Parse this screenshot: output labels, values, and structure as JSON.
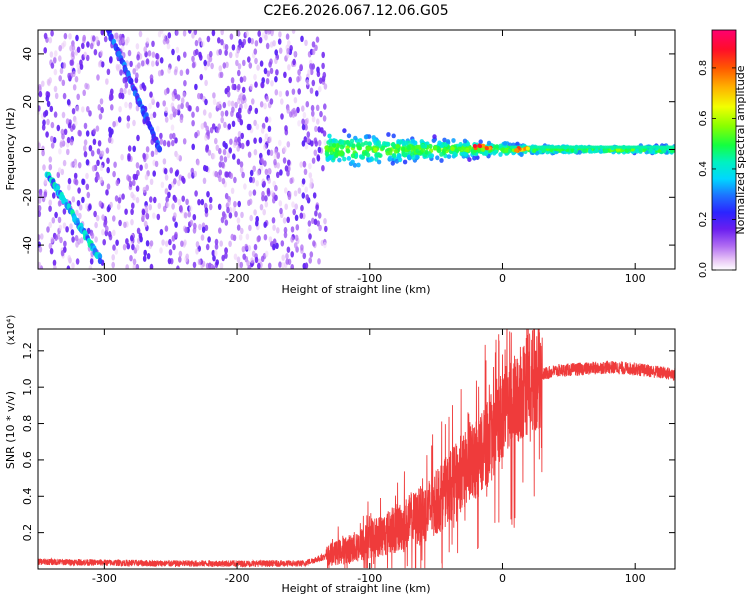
{
  "figure": {
    "title": "C2E6.2026.067.12.06.G05"
  },
  "chart_data": [
    {
      "type": "heatmap",
      "xlabel": "Height of straight line (km)",
      "ylabel": "Frequency (Hz)",
      "xlim": [
        -350,
        130
      ],
      "ylim": [
        -50,
        50
      ],
      "x_ticks": [
        -300,
        -200,
        -100,
        0,
        100
      ],
      "y_ticks": [
        -40,
        -20,
        0,
        20,
        40
      ],
      "colorbar": {
        "label": "Normalized spectral amplitude",
        "range": [
          0.0,
          0.95
        ],
        "ticks": [
          0.0,
          0.2,
          0.4,
          0.6,
          0.8
        ],
        "colormap": "rainbow"
      },
      "features": [
        {
          "kind": "noise-field",
          "x_range": [
            -350,
            -133
          ],
          "y_range": [
            -50,
            50
          ],
          "amplitude": 0.1
        },
        {
          "kind": "track",
          "x_range": [
            -343,
            -303
          ],
          "y_range": [
            -10,
            -46
          ],
          "amplitude": 0.35
        },
        {
          "kind": "track",
          "x_range": [
            -297,
            -258
          ],
          "y_range": [
            50,
            0
          ],
          "amplitude": 0.25
        },
        {
          "kind": "band",
          "x_range": [
            -133,
            130
          ],
          "center_hz": 0,
          "start_width_hz": 20,
          "end_width_hz": 4,
          "amplitude": 0.4
        },
        {
          "kind": "peak",
          "x": -15,
          "y": 1,
          "amplitude": 0.85
        },
        {
          "kind": "peak",
          "x": 15,
          "y": 0,
          "amplitude": 0.8
        }
      ],
      "grid": false,
      "legend": "right"
    },
    {
      "type": "line",
      "xlabel": "Height of straight line (km)",
      "ylabel": "SNR (10 * v/v)",
      "y_multiplier": "(x10⁴)",
      "xlim": [
        -350,
        130
      ],
      "ylim": [
        0,
        1.32
      ],
      "x_ticks": [
        -300,
        -200,
        -100,
        0,
        100
      ],
      "y_ticks": [
        0.2,
        0.4,
        0.6,
        0.8,
        1.0,
        1.2
      ],
      "y_tick_labels": [
        "0.2",
        "0.4",
        "0.6",
        "0.8",
        "1.0",
        "1.2"
      ],
      "color": "#ef3b3b",
      "series": [
        {
          "x": [
            -350,
            -300,
            -250,
            -200,
            -150,
            -133,
            -120,
            -110,
            -100,
            -90,
            -80,
            -70,
            -60,
            -50,
            -40,
            -30,
            -20,
            -10,
            -5,
            0,
            5,
            10,
            20,
            30,
            40,
            60,
            80,
            100,
            120,
            130
          ],
          "values": [
            0.04,
            0.035,
            0.03,
            0.03,
            0.03,
            0.07,
            0.1,
            0.12,
            0.16,
            0.19,
            0.22,
            0.26,
            0.3,
            0.36,
            0.45,
            0.53,
            0.6,
            0.7,
            0.78,
            0.82,
            0.9,
            0.95,
            1.03,
            1.07,
            1.09,
            1.1,
            1.11,
            1.1,
            1.08,
            1.07
          ]
        }
      ],
      "grid": false
    }
  ]
}
